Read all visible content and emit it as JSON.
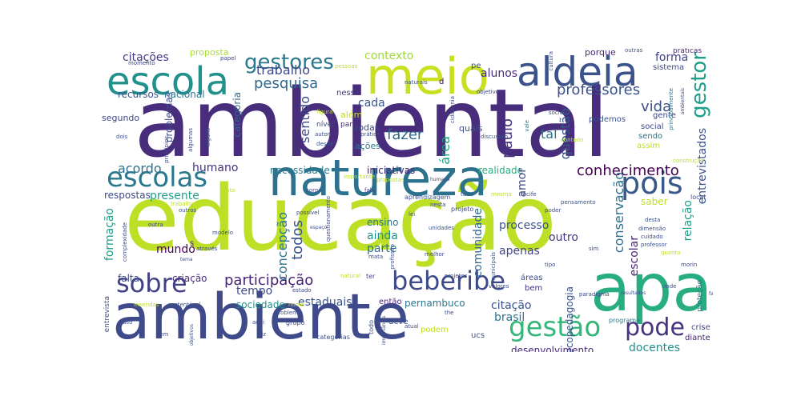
{
  "words": [
    {
      "text": "ambiental",
      "color": "#472d7b"
    },
    {
      "text": "educação",
      "color": "#bddf26"
    },
    {
      "text": "ambiente",
      "color": "#3e4a89"
    },
    {
      "text": "apa",
      "color": "#27ad81"
    },
    {
      "text": "natureza",
      "color": "#2c728e"
    },
    {
      "text": "meio",
      "color": "#c8e020"
    },
    {
      "text": "aldeia",
      "color": "#3b528b"
    },
    {
      "text": "escola",
      "color": "#21918c"
    },
    {
      "text": "escolas",
      "color": "#2a788e"
    },
    {
      "text": "beberibe",
      "color": "#3e4989"
    },
    {
      "text": "sobre",
      "color": "#424186"
    },
    {
      "text": "gestão",
      "color": "#35b779"
    },
    {
      "text": "pois",
      "color": "#38588c"
    },
    {
      "text": "pode",
      "color": "#46327e"
    },
    {
      "text": "gestores",
      "color": "#2a788e"
    },
    {
      "text": "gestor",
      "color": "#1f9e89"
    },
    {
      "text": "professores",
      "color": "#3b528b"
    },
    {
      "text": "participação",
      "color": "#482374"
    },
    {
      "text": "conhecimento",
      "color": "#440154"
    },
    {
      "text": "pesquisa",
      "color": "#31688e"
    },
    {
      "text": "trabalho",
      "color": "#3e4989"
    },
    {
      "text": "contexto",
      "color": "#a0da39"
    },
    {
      "text": "citações",
      "color": "#443983"
    },
    {
      "text": "fazer",
      "color": "#31688e"
    },
    {
      "text": "vida",
      "color": "#3b528b"
    },
    {
      "text": "acordo",
      "color": "#2c728e"
    },
    {
      "text": "forma",
      "color": "#414487"
    },
    {
      "text": "humano",
      "color": "#46327e"
    },
    {
      "text": "presente",
      "color": "#1fa187"
    },
    {
      "text": "docentes",
      "color": "#21918c"
    },
    {
      "text": "citação",
      "color": "#3b528b"
    },
    {
      "text": "tempo",
      "color": "#3e4a89"
    },
    {
      "text": "estaduais",
      "color": "#39568c"
    },
    {
      "text": "brasil",
      "color": "#2c728e"
    },
    {
      "text": "desenvolvimento",
      "color": "#482878"
    },
    {
      "text": "mundo",
      "color": "#440154"
    },
    {
      "text": "formação",
      "color": "#1f9e89"
    },
    {
      "text": "processo",
      "color": "#3b528b"
    },
    {
      "text": "ainda",
      "color": "#21918c"
    },
    {
      "text": "parte",
      "color": "#2c728e"
    },
    {
      "text": "apenas",
      "color": "#414487"
    },
    {
      "text": "outro",
      "color": "#453781"
    },
    {
      "text": "respostas",
      "color": "#3e4a89"
    },
    {
      "text": "necessidade",
      "color": "#2a788e"
    },
    {
      "text": "alunos",
      "color": "#472d7b"
    },
    {
      "text": "cada",
      "color": "#3b528b"
    },
    {
      "text": "realidade",
      "color": "#27ad81"
    },
    {
      "text": "iniciativas",
      "color": "#482475"
    },
    {
      "text": "ensino",
      "color": "#2a788e"
    },
    {
      "text": "sentido",
      "color": "#3e4989"
    },
    {
      "text": "paulo",
      "color": "#46327e"
    },
    {
      "text": "amor",
      "color": "#404688"
    },
    {
      "text": "questão",
      "color": "#38588c"
    },
    {
      "text": "conservação",
      "color": "#2c728e"
    },
    {
      "text": "relação",
      "color": "#1f9e89"
    },
    {
      "text": "entrevistados",
      "color": "#3b528b"
    },
    {
      "text": "escolar",
      "color": "#482576"
    },
    {
      "text": "comunidade",
      "color": "#31688e"
    },
    {
      "text": "concepção",
      "color": "#2a788e"
    },
    {
      "text": "todos",
      "color": "#3b528b"
    },
    {
      "text": "problemas",
      "color": "#3e4989"
    },
    {
      "text": "área",
      "color": "#1fa187"
    },
    {
      "text": "tal",
      "color": "#2c728e"
    },
    {
      "text": "saber",
      "color": "#bddf26"
    },
    {
      "text": "sociedade",
      "color": "#21918c"
    },
    {
      "text": "criação",
      "color": "#472d7b"
    },
    {
      "text": "falta",
      "color": "#3e4a89"
    },
    {
      "text": "ecopedagogia",
      "color": "#3b528b"
    },
    {
      "text": "pernambuco",
      "color": "#2a788e"
    },
    {
      "text": "então",
      "color": "#482878"
    },
    {
      "text": "deve",
      "color": "#3b528b"
    },
    {
      "text": "crise",
      "color": "#414487"
    },
    {
      "text": "diante",
      "color": "#482374"
    },
    {
      "text": "categoria",
      "color": "#31688e"
    },
    {
      "text": "nacional",
      "color": "#2a788e"
    },
    {
      "text": "recursos",
      "color": "#3b528b"
    },
    {
      "text": "segundo",
      "color": "#3e4a89"
    },
    {
      "text": "proposta",
      "color": "#a8db34"
    },
    {
      "text": "além",
      "color": "#c0df25"
    },
    {
      "text": "todas",
      "color": "#3e4989"
    },
    {
      "text": "ações",
      "color": "#2a788e"
    },
    {
      "text": "quais",
      "color": "#3b528b"
    },
    {
      "text": "porque",
      "color": "#482878"
    },
    {
      "text": "sistema",
      "color": "#3e4a89"
    },
    {
      "text": "podemos",
      "color": "#3b528b"
    },
    {
      "text": "social",
      "color": "#404688"
    },
    {
      "text": "sendo",
      "color": "#2c728e"
    },
    {
      "text": "assim",
      "color": "#bddf26"
    },
    {
      "text": "gente",
      "color": "#3e4989"
    },
    {
      "text": "nesse",
      "color": "#453781"
    },
    {
      "text": "partir",
      "color": "#472d7b"
    },
    {
      "text": "nível",
      "color": "#3e4a89"
    },
    {
      "text": "pe",
      "color": "#3b528b"
    },
    {
      "text": "d",
      "color": "#440154"
    },
    {
      "text": "ucs",
      "color": "#3b528b"
    },
    {
      "text": "podem",
      "color": "#bddf26"
    },
    {
      "text": "bem",
      "color": "#46327e"
    },
    {
      "text": "áreas",
      "color": "#3e4a89"
    },
    {
      "text": "s",
      "color": "#482576"
    },
    {
      "text": "entrevista",
      "color": "#3b528b"
    },
    {
      "text": "programa",
      "color": "#2a788e"
    },
    {
      "text": "proteção",
      "color": "#2c728e"
    },
    {
      "text": "local",
      "color": "#3e4a89"
    },
    {
      "text": "projeto",
      "color": "#3e4989"
    },
    {
      "text": "categorias",
      "color": "#3b528b"
    },
    {
      "text": "grupo",
      "color": "#3e4a89"
    },
    {
      "text": "cultura",
      "color": "#3b528b"
    },
    {
      "text": "práticas",
      "color": "#482878"
    },
    {
      "text": "outras",
      "color": "#3b528b"
    },
    {
      "text": "papel",
      "color": "#3e4a89"
    },
    {
      "text": "momento",
      "color": "#404688"
    },
    {
      "text": "pessoas",
      "color": "#bddf26"
    },
    {
      "text": "naturais",
      "color": "#3b528b"
    },
    {
      "text": "objetivo",
      "color": "#3e4a89"
    },
    {
      "text": "principalmente",
      "color": "#2a788e"
    },
    {
      "text": "ambientais",
      "color": "#3e4989"
    },
    {
      "text": "dois",
      "color": "#3b528b"
    },
    {
      "text": "princípios",
      "color": "#3e4a89"
    },
    {
      "text": "algumas",
      "color": "#414487"
    },
    {
      "text": "alguns",
      "color": "#3b528b"
    },
    {
      "text": "autor",
      "color": "#3e4a89"
    },
    {
      "text": "desde",
      "color": "#3b528b"
    },
    {
      "text": "prática",
      "color": "#3e4a89"
    },
    {
      "text": "discussão",
      "color": "#3b528b"
    },
    {
      "text": "vale",
      "color": "#2a788e"
    },
    {
      "text": "cidadania",
      "color": "#3e4989"
    },
    {
      "text": "figura",
      "color": "#bddf26"
    },
    {
      "text": "sociais",
      "color": "#3b528b"
    },
    {
      "text": "contudo",
      "color": "#bddf26"
    },
    {
      "text": "construção",
      "color": "#bddf26"
    },
    {
      "text": "dimensão",
      "color": "#3b528b"
    },
    {
      "text": "cuidado",
      "color": "#3e4a89"
    },
    {
      "text": "professor",
      "color": "#3b528b"
    },
    {
      "text": "quanto",
      "color": "#bddf26"
    },
    {
      "text": "morin",
      "color": "#3e4a89"
    },
    {
      "text": "onde",
      "color": "#3b528b"
    },
    {
      "text": "paradigma",
      "color": "#3e4a89"
    },
    {
      "text": "resultados",
      "color": "#3b528b"
    },
    {
      "text": "faz",
      "color": "#3e4a89"
    },
    {
      "text": "tipo",
      "color": "#3b528b"
    },
    {
      "text": "sim",
      "color": "#3e4a89"
    },
    {
      "text": "desta",
      "color": "#3b528b"
    },
    {
      "text": "poder",
      "color": "#3e4a89"
    },
    {
      "text": "pensamento",
      "color": "#3b528b"
    },
    {
      "text": "recife",
      "color": "#3e4a89"
    },
    {
      "text": "municipais",
      "color": "#3b528b"
    },
    {
      "text": "melhor",
      "color": "#3e4a89"
    },
    {
      "text": "unidades",
      "color": "#3b528b"
    },
    {
      "text": "questionamento",
      "color": "#3e4a89"
    },
    {
      "text": "espaço",
      "color": "#3b528b"
    },
    {
      "text": "possível",
      "color": "#3e4a89"
    },
    {
      "text": "corpo",
      "color": "#3b528b"
    },
    {
      "text": "fala",
      "color": "#3e4a89"
    },
    {
      "text": "importante",
      "color": "#bddf26"
    },
    {
      "text": "aprendizagem",
      "color": "#3b528b"
    },
    {
      "text": "humana",
      "color": "#3e4a89"
    },
    {
      "text": "propostas",
      "color": "#bddf26"
    },
    {
      "text": "lei",
      "color": "#3b528b"
    },
    {
      "text": "nesta",
      "color": "#3e4a89"
    },
    {
      "text": "tudo",
      "color": "#3b528b"
    },
    {
      "text": "mesma",
      "color": "#bddf26"
    },
    {
      "text": "mata",
      "color": "#3e4a89"
    },
    {
      "text": "natural",
      "color": "#bddf26"
    },
    {
      "text": "profissão",
      "color": "#3b528b"
    },
    {
      "text": "valores",
      "color": "#3e4a89"
    },
    {
      "text": "projetos",
      "color": "#3b528b"
    },
    {
      "text": "estado",
      "color": "#3e4a89"
    },
    {
      "text": "nome",
      "color": "#bddf26"
    },
    {
      "text": "problema",
      "color": "#3b528b"
    },
    {
      "text": "aqui",
      "color": "#3e4a89"
    },
    {
      "text": "uso",
      "color": "#3b528b"
    },
    {
      "text": "vem",
      "color": "#3e4a89"
    },
    {
      "text": "objetivos",
      "color": "#3b528b"
    },
    {
      "text": "diz",
      "color": "#3e4a89"
    },
    {
      "text": "importância",
      "color": "#3b528b"
    },
    {
      "text": "atual",
      "color": "#3e4a89"
    },
    {
      "text": "the",
      "color": "#3b528b"
    },
    {
      "text": "inseridas",
      "color": "#bddf26"
    },
    {
      "text": "sustentável",
      "color": "#3b528b"
    },
    {
      "text": "ter",
      "color": "#3e4a89"
    },
    {
      "text": "outros",
      "color": "#3b528b"
    },
    {
      "text": "outra",
      "color": "#3e4a89"
    },
    {
      "text": "modelo",
      "color": "#3b528b"
    },
    {
      "text": "através",
      "color": "#3e4a89"
    },
    {
      "text": "tema",
      "color": "#3b528b"
    },
    {
      "text": "complexidade",
      "color": "#3e4a89"
    },
    {
      "text": "trabalhar",
      "color": "#bddf26"
    },
    {
      "text": "todo",
      "color": "#3b528b"
    },
    {
      "text": "fato",
      "color": "#bddf26"
    }
  ]
}
